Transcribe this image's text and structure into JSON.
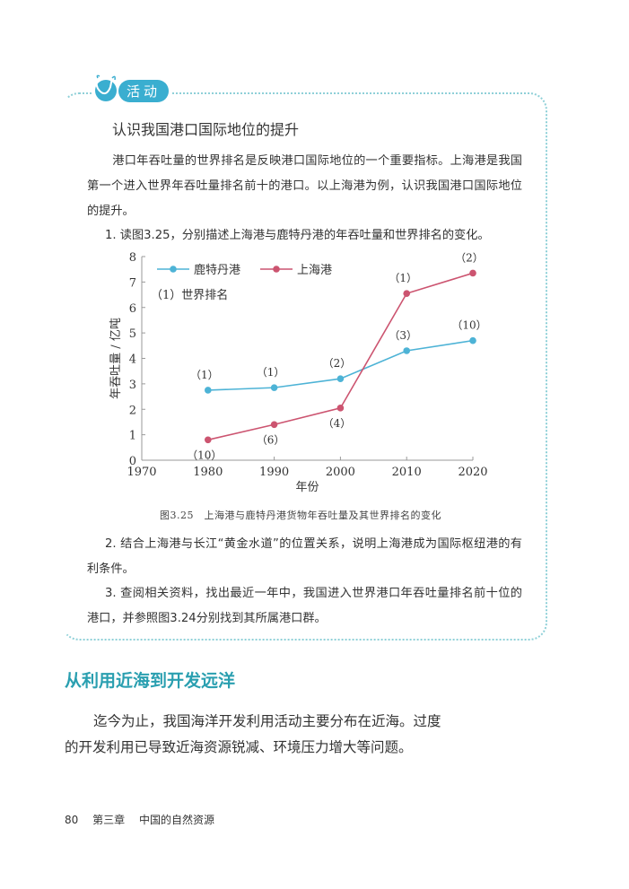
{
  "activity": {
    "badge_label": "活动",
    "title": "认识我国港口国际地位的提升",
    "intro": "港口年吞吐量的世界排名是反映港口国际地位的一个重要指标。上海港是我国第一个进入世界年吞吐量排名前十的港口。以上海港为例，认识我国港口国际地位的提升。",
    "q1": "1. 读图3.25，分别描述上海港与鹿特丹港的年吞吐量和世界排名的变化。",
    "q2": "2. 结合上海港与长江“黄金水道”的位置关系，说明上海港成为国际枢纽港的有利条件。",
    "q3": "3. 查阅相关资料，找出最近一年中，我国进入世界港口年吞吐量排名前十位的港口，并参照图3.24分别找到其所属港口群。"
  },
  "figure": {
    "caption": "图3.25　上海港与鹿特丹港货物年吞吐量及其世界排名的变化"
  },
  "chart_data": {
    "type": "line",
    "title": "上海港与鹿特丹港货物年吞吐量及其世界排名的变化",
    "xlabel": "年份",
    "ylabel": "年吞吐量 / 亿吨",
    "x": [
      1980,
      1990,
      2000,
      2010,
      2020
    ],
    "x_ticks": [
      1970,
      1980,
      1990,
      2000,
      2010,
      2020
    ],
    "y_ticks": [
      0,
      1,
      2,
      3,
      4,
      5,
      6,
      7,
      8
    ],
    "xlim": [
      1970,
      2020
    ],
    "ylim": [
      0,
      8
    ],
    "grid": false,
    "legend_position": "top-left",
    "annotation": "（1）世界排名",
    "series": [
      {
        "name": "鹿特丹港",
        "color": "#4db3d6",
        "values": [
          2.75,
          2.85,
          3.2,
          4.3,
          4.7
        ],
        "rank_labels": [
          "（1）",
          "（1）",
          "（2）",
          "（3）",
          "（10）"
        ],
        "label_position": "above"
      },
      {
        "name": "上海港",
        "color": "#cc5470",
        "values": [
          0.8,
          1.4,
          2.05,
          6.55,
          7.35
        ],
        "rank_labels": [
          "（10）",
          "（6）",
          "（4）",
          "（1）",
          "（2）"
        ],
        "label_position": [
          "below",
          "below",
          "below",
          "above",
          "above"
        ]
      }
    ]
  },
  "section": {
    "title": "从利用近海到开发远洋",
    "body": "迄今为止，我国海洋开发利用活动主要分布在近海。过度的开发利用已导致近海资源锐减、环境压力增大等问题。"
  },
  "footer": {
    "page_number": "80",
    "chapter": "第三章",
    "chapter_title": "中国的自然资源"
  }
}
